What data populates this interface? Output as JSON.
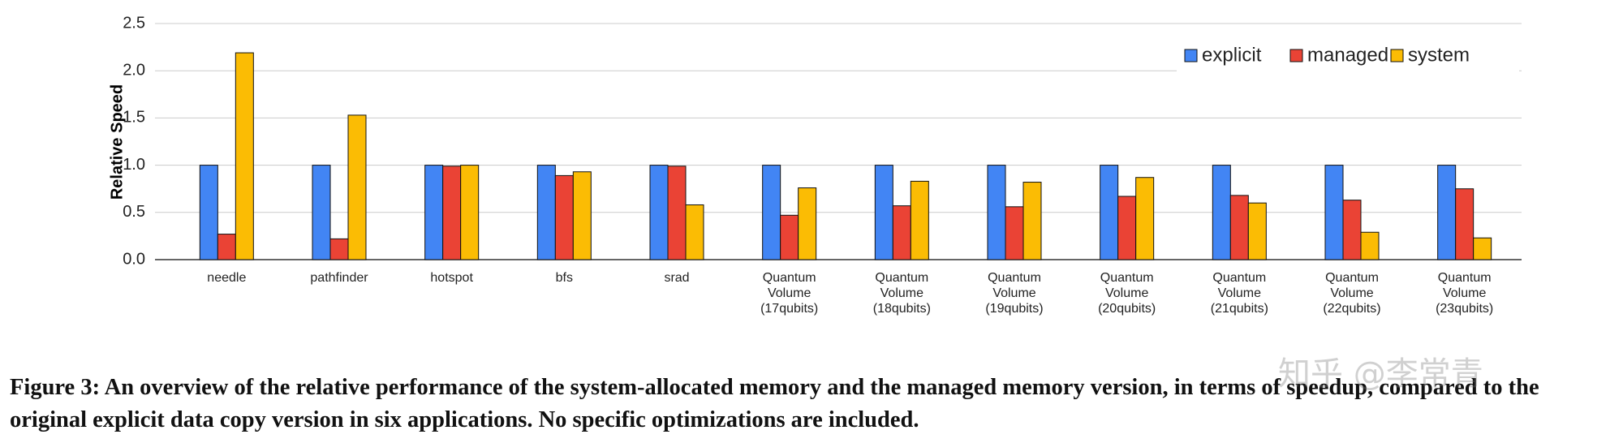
{
  "chart_data": {
    "type": "bar",
    "y_label": "Relative Speed",
    "categories": [
      "needle",
      "pathfinder",
      "hotspot",
      "bfs",
      "srad",
      "Quantum\nVolume\n(17qubits)",
      "Quantum\nVolume\n(18qubits)",
      "Quantum\nVolume\n(19qubits)",
      "Quantum\nVolume\n(20qubits)",
      "Quantum\nVolume\n(21qubits)",
      "Quantum\nVolume\n(22qubits)",
      "Quantum\nVolume\n(23qubits)"
    ],
    "series": [
      {
        "name": "explicit",
        "color": "#4285f4",
        "values": [
          1.0,
          1.0,
          1.0,
          1.0,
          1.0,
          1.0,
          1.0,
          1.0,
          1.0,
          1.0,
          1.0,
          1.0
        ]
      },
      {
        "name": "managed",
        "color": "#ea4335",
        "values": [
          0.27,
          0.22,
          0.99,
          0.89,
          0.99,
          0.47,
          0.57,
          0.56,
          0.67,
          0.68,
          0.63,
          0.75
        ]
      },
      {
        "name": "system",
        "color": "#fbbc04",
        "values": [
          2.19,
          1.53,
          1.0,
          0.93,
          0.58,
          0.76,
          0.83,
          0.82,
          0.87,
          0.6,
          0.29,
          0.23
        ]
      }
    ],
    "ylim": [
      0,
      2.5
    ],
    "yticks": [
      {
        "value": 0,
        "label": "0.0"
      },
      0.5,
      {
        "value": 1,
        "label": "1.0"
      },
      1.5,
      {
        "value": 2,
        "label": "2.0"
      },
      2.5
    ],
    "grid": true,
    "legend_position": "top-right"
  },
  "caption": "Figure 3: An overview of the relative performance of the system-allocated memory and the managed memory version, in terms of speedup, compared to the original explicit data copy version in six applications. No specific optimizations are included.",
  "watermark": "知乎 @李常青"
}
